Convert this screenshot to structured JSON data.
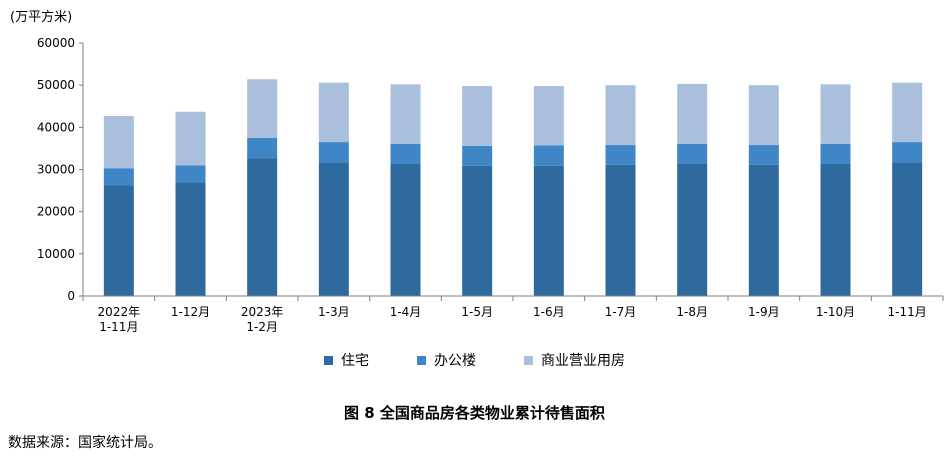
{
  "chart_data": {
    "type": "bar",
    "stacked": true,
    "unit_label": "(万平方米)",
    "categories": [
      [
        "2022年",
        "1-11月"
      ],
      [
        "1-12月"
      ],
      [
        "2023年",
        "1-2月"
      ],
      [
        "1-3月"
      ],
      [
        "1-4月"
      ],
      [
        "1-5月"
      ],
      [
        "1-6月"
      ],
      [
        "1-7月"
      ],
      [
        "1-8月"
      ],
      [
        "1-9月"
      ],
      [
        "1-10月"
      ],
      [
        "1-11月"
      ]
    ],
    "series": [
      {
        "name": "住宅",
        "color": "#2e6a9e",
        "values": [
          26200,
          27000,
          32700,
          31700,
          31300,
          30900,
          30900,
          31100,
          31400,
          31100,
          31300,
          31700
        ]
      },
      {
        "name": "办公楼",
        "color": "#3e86c6",
        "values": [
          4100,
          4000,
          4800,
          4800,
          4800,
          4700,
          4800,
          4700,
          4700,
          4700,
          4800,
          4800
        ]
      },
      {
        "name": "商业营业用房",
        "color": "#a9bfdb",
        "values": [
          12400,
          12700,
          13900,
          14100,
          14100,
          14200,
          14100,
          14200,
          14200,
          14200,
          14100,
          14100
        ]
      }
    ],
    "yticks": [
      "0",
      "10000",
      "20000",
      "30000",
      "40000",
      "50000",
      "60000"
    ],
    "ylim": [
      0,
      60000
    ],
    "grid": false,
    "legend_position": "bottom"
  },
  "figure": {
    "title": "图 8   全国商品房各类物业累计待售面积",
    "source": "数据来源：国家统计局。"
  }
}
